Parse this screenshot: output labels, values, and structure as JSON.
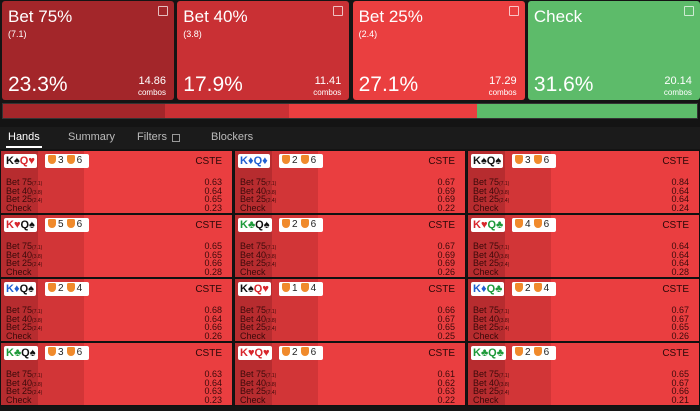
{
  "actions": [
    {
      "name": "Bet 75%",
      "size": "(7.1)",
      "freq": "23.3%",
      "combos": 14.86,
      "unit": "combos",
      "color": "#a3262a"
    },
    {
      "name": "Bet 40%",
      "size": "(3.8)",
      "freq": "17.9%",
      "combos": 11.41,
      "unit": "combos",
      "color": "#c93034"
    },
    {
      "name": "Bet 25%",
      "size": "(2.4)",
      "freq": "27.1%",
      "combos": 17.29,
      "unit": "combos",
      "color": "#ea3f40"
    },
    {
      "name": "Check",
      "freq": "31.6%",
      "combos": 20.14,
      "unit": "combos",
      "color": "#5dbb6a"
    }
  ],
  "tabs": [
    "Hands",
    "Summary",
    "Filters",
    "Blockers"
  ],
  "hands": [
    {
      "cards": [
        "K♠",
        "Q♥"
      ],
      "badges": [
        3,
        6
      ],
      "tag": "CSTE",
      "rows": [
        {
          "name": "Bet 75",
          "size": "(7.1)",
          "value": 0.63
        },
        {
          "name": "Bet 40",
          "size": "(3.8)",
          "value": 0.64
        },
        {
          "name": "Bet 25",
          "size": "(2.4)",
          "value": 0.65
        },
        {
          "name": "Check",
          "value": 0.23
        }
      ]
    },
    {
      "cards": [
        "K♦",
        "Q♦"
      ],
      "badges": [
        2,
        6
      ],
      "tag": "CSTE",
      "rows": [
        {
          "name": "Bet 75",
          "size": "(7.1)",
          "value": 0.67
        },
        {
          "name": "Bet 40",
          "size": "(3.8)",
          "value": 0.69
        },
        {
          "name": "Bet 25",
          "size": "(2.4)",
          "value": 0.69
        },
        {
          "name": "Check",
          "value": 0.22
        }
      ]
    },
    {
      "cards": [
        "K♠",
        "Q♠"
      ],
      "badges": [
        3,
        6
      ],
      "tag": "CSTE",
      "rows": [
        {
          "name": "Bet 75",
          "size": "(7.1)",
          "value": 0.84
        },
        {
          "name": "Bet 40",
          "size": "(3.8)",
          "value": 0.64
        },
        {
          "name": "Bet 25",
          "size": "(2.4)",
          "value": 0.64
        },
        {
          "name": "Check",
          "value": 0.24
        }
      ]
    },
    {
      "cards": [
        "K♥",
        "Q♠"
      ],
      "badges": [
        5,
        6
      ],
      "tag": "CSTE",
      "rows": [
        {
          "name": "Bet 75",
          "size": "(7.1)",
          "value": 0.65
        },
        {
          "name": "Bet 40",
          "size": "(3.8)",
          "value": 0.65
        },
        {
          "name": "Bet 25",
          "size": "(2.4)",
          "value": 0.66
        },
        {
          "name": "Check",
          "value": 0.28
        }
      ]
    },
    {
      "cards": [
        "K♣",
        "Q♠"
      ],
      "badges": [
        2,
        6
      ],
      "tag": "CSTE",
      "rows": [
        {
          "name": "Bet 75",
          "size": "(7.1)",
          "value": 0.67
        },
        {
          "name": "Bet 40",
          "size": "(3.8)",
          "value": 0.69
        },
        {
          "name": "Bet 25",
          "size": "(2.4)",
          "value": 0.69
        },
        {
          "name": "Check",
          "value": 0.26
        }
      ]
    },
    {
      "cards": [
        "K♥",
        "Q♣"
      ],
      "badges": [
        4,
        6
      ],
      "tag": "CSTE",
      "rows": [
        {
          "name": "Bet 75",
          "size": "(7.1)",
          "value": 0.64
        },
        {
          "name": "Bet 40",
          "size": "(3.8)",
          "value": 0.64
        },
        {
          "name": "Bet 25",
          "size": "(2.4)",
          "value": 0.64
        },
        {
          "name": "Check",
          "value": 0.28
        }
      ]
    },
    {
      "cards": [
        "K♦",
        "Q♠"
      ],
      "badges": [
        2,
        4
      ],
      "tag": "CSTE",
      "rows": [
        {
          "name": "Bet 75",
          "size": "(7.1)",
          "value": 0.68
        },
        {
          "name": "Bet 40",
          "size": "(3.8)",
          "value": 0.64
        },
        {
          "name": "Bet 25",
          "size": "(2.4)",
          "value": 0.66
        },
        {
          "name": "Check",
          "value": 0.26
        }
      ]
    },
    {
      "cards": [
        "K♠",
        "Q♥"
      ],
      "badges": [
        1,
        4
      ],
      "tag": "CSTE",
      "rows": [
        {
          "name": "Bet 75",
          "size": "(7.1)",
          "value": 0.66
        },
        {
          "name": "Bet 40",
          "size": "(3.8)",
          "value": 0.67
        },
        {
          "name": "Bet 25",
          "size": "(2.4)",
          "value": 0.65
        },
        {
          "name": "Check",
          "value": 0.25
        }
      ]
    },
    {
      "cards": [
        "K♦",
        "Q♣"
      ],
      "badges": [
        2,
        4
      ],
      "tag": "CSTE",
      "rows": [
        {
          "name": "Bet 75",
          "size": "(7.1)",
          "value": 0.67
        },
        {
          "name": "Bet 40",
          "size": "(3.8)",
          "value": 0.67
        },
        {
          "name": "Bet 25",
          "size": "(2.4)",
          "value": 0.65
        },
        {
          "name": "Check",
          "value": 0.26
        }
      ]
    },
    {
      "cards": [
        "K♣",
        "Q♠"
      ],
      "badges": [
        3,
        6
      ],
      "tag": "CSTE",
      "rows": [
        {
          "name": "Bet 75",
          "size": "(7.1)",
          "value": 0.63
        },
        {
          "name": "Bet 40",
          "size": "(3.8)",
          "value": 0.64
        },
        {
          "name": "Bet 25",
          "size": "(2.4)",
          "value": 0.63
        },
        {
          "name": "Check",
          "value": 0.23
        }
      ]
    },
    {
      "cards": [
        "K♥",
        "Q♥"
      ],
      "badges": [
        2,
        6
      ],
      "tag": "CSTE",
      "rows": [
        {
          "name": "Bet 75",
          "size": "(7.1)",
          "value": 0.61
        },
        {
          "name": "Bet 40",
          "size": "(3.8)",
          "value": 0.62
        },
        {
          "name": "Bet 25",
          "size": "(2.4)",
          "value": 0.63
        },
        {
          "name": "Check",
          "value": 0.22
        }
      ]
    },
    {
      "cards": [
        "K♣",
        "Q♣"
      ],
      "badges": [
        2,
        6
      ],
      "tag": "CSTE",
      "rows": [
        {
          "name": "Bet 75",
          "size": "(7.1)",
          "value": 0.65
        },
        {
          "name": "Bet 40",
          "size": "(3.8)",
          "value": 0.67
        },
        {
          "name": "Bet 25",
          "size": "(2.4)",
          "value": 0.66
        },
        {
          "name": "Check",
          "value": 0.21
        }
      ]
    }
  ]
}
